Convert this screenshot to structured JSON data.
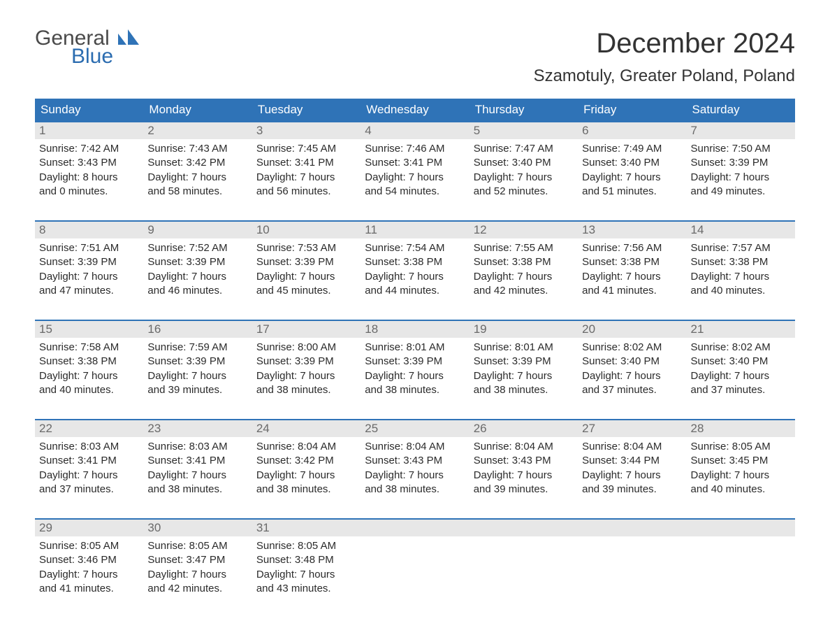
{
  "logo": {
    "text_top": "General",
    "text_bottom": "Blue",
    "mark_color": "#2f73b7"
  },
  "title": "December 2024",
  "location": "Szamotuly, Greater Poland, Poland",
  "colors": {
    "header_bg": "#2f73b7",
    "header_text": "#ffffff",
    "daynum_bg": "#e7e7e7",
    "daynum_text": "#6a6a6a",
    "week_border": "#2f73b7",
    "body_text": "#2b2b2b"
  },
  "weekdays": [
    "Sunday",
    "Monday",
    "Tuesday",
    "Wednesday",
    "Thursday",
    "Friday",
    "Saturday"
  ],
  "weeks": [
    [
      {
        "num": "1",
        "sunrise": "Sunrise: 7:42 AM",
        "sunset": "Sunset: 3:43 PM",
        "day1": "Daylight: 8 hours",
        "day2": "and 0 minutes."
      },
      {
        "num": "2",
        "sunrise": "Sunrise: 7:43 AM",
        "sunset": "Sunset: 3:42 PM",
        "day1": "Daylight: 7 hours",
        "day2": "and 58 minutes."
      },
      {
        "num": "3",
        "sunrise": "Sunrise: 7:45 AM",
        "sunset": "Sunset: 3:41 PM",
        "day1": "Daylight: 7 hours",
        "day2": "and 56 minutes."
      },
      {
        "num": "4",
        "sunrise": "Sunrise: 7:46 AM",
        "sunset": "Sunset: 3:41 PM",
        "day1": "Daylight: 7 hours",
        "day2": "and 54 minutes."
      },
      {
        "num": "5",
        "sunrise": "Sunrise: 7:47 AM",
        "sunset": "Sunset: 3:40 PM",
        "day1": "Daylight: 7 hours",
        "day2": "and 52 minutes."
      },
      {
        "num": "6",
        "sunrise": "Sunrise: 7:49 AM",
        "sunset": "Sunset: 3:40 PM",
        "day1": "Daylight: 7 hours",
        "day2": "and 51 minutes."
      },
      {
        "num": "7",
        "sunrise": "Sunrise: 7:50 AM",
        "sunset": "Sunset: 3:39 PM",
        "day1": "Daylight: 7 hours",
        "day2": "and 49 minutes."
      }
    ],
    [
      {
        "num": "8",
        "sunrise": "Sunrise: 7:51 AM",
        "sunset": "Sunset: 3:39 PM",
        "day1": "Daylight: 7 hours",
        "day2": "and 47 minutes."
      },
      {
        "num": "9",
        "sunrise": "Sunrise: 7:52 AM",
        "sunset": "Sunset: 3:39 PM",
        "day1": "Daylight: 7 hours",
        "day2": "and 46 minutes."
      },
      {
        "num": "10",
        "sunrise": "Sunrise: 7:53 AM",
        "sunset": "Sunset: 3:39 PM",
        "day1": "Daylight: 7 hours",
        "day2": "and 45 minutes."
      },
      {
        "num": "11",
        "sunrise": "Sunrise: 7:54 AM",
        "sunset": "Sunset: 3:38 PM",
        "day1": "Daylight: 7 hours",
        "day2": "and 44 minutes."
      },
      {
        "num": "12",
        "sunrise": "Sunrise: 7:55 AM",
        "sunset": "Sunset: 3:38 PM",
        "day1": "Daylight: 7 hours",
        "day2": "and 42 minutes."
      },
      {
        "num": "13",
        "sunrise": "Sunrise: 7:56 AM",
        "sunset": "Sunset: 3:38 PM",
        "day1": "Daylight: 7 hours",
        "day2": "and 41 minutes."
      },
      {
        "num": "14",
        "sunrise": "Sunrise: 7:57 AM",
        "sunset": "Sunset: 3:38 PM",
        "day1": "Daylight: 7 hours",
        "day2": "and 40 minutes."
      }
    ],
    [
      {
        "num": "15",
        "sunrise": "Sunrise: 7:58 AM",
        "sunset": "Sunset: 3:38 PM",
        "day1": "Daylight: 7 hours",
        "day2": "and 40 minutes."
      },
      {
        "num": "16",
        "sunrise": "Sunrise: 7:59 AM",
        "sunset": "Sunset: 3:39 PM",
        "day1": "Daylight: 7 hours",
        "day2": "and 39 minutes."
      },
      {
        "num": "17",
        "sunrise": "Sunrise: 8:00 AM",
        "sunset": "Sunset: 3:39 PM",
        "day1": "Daylight: 7 hours",
        "day2": "and 38 minutes."
      },
      {
        "num": "18",
        "sunrise": "Sunrise: 8:01 AM",
        "sunset": "Sunset: 3:39 PM",
        "day1": "Daylight: 7 hours",
        "day2": "and 38 minutes."
      },
      {
        "num": "19",
        "sunrise": "Sunrise: 8:01 AM",
        "sunset": "Sunset: 3:39 PM",
        "day1": "Daylight: 7 hours",
        "day2": "and 38 minutes."
      },
      {
        "num": "20",
        "sunrise": "Sunrise: 8:02 AM",
        "sunset": "Sunset: 3:40 PM",
        "day1": "Daylight: 7 hours",
        "day2": "and 37 minutes."
      },
      {
        "num": "21",
        "sunrise": "Sunrise: 8:02 AM",
        "sunset": "Sunset: 3:40 PM",
        "day1": "Daylight: 7 hours",
        "day2": "and 37 minutes."
      }
    ],
    [
      {
        "num": "22",
        "sunrise": "Sunrise: 8:03 AM",
        "sunset": "Sunset: 3:41 PM",
        "day1": "Daylight: 7 hours",
        "day2": "and 37 minutes."
      },
      {
        "num": "23",
        "sunrise": "Sunrise: 8:03 AM",
        "sunset": "Sunset: 3:41 PM",
        "day1": "Daylight: 7 hours",
        "day2": "and 38 minutes."
      },
      {
        "num": "24",
        "sunrise": "Sunrise: 8:04 AM",
        "sunset": "Sunset: 3:42 PM",
        "day1": "Daylight: 7 hours",
        "day2": "and 38 minutes."
      },
      {
        "num": "25",
        "sunrise": "Sunrise: 8:04 AM",
        "sunset": "Sunset: 3:43 PM",
        "day1": "Daylight: 7 hours",
        "day2": "and 38 minutes."
      },
      {
        "num": "26",
        "sunrise": "Sunrise: 8:04 AM",
        "sunset": "Sunset: 3:43 PM",
        "day1": "Daylight: 7 hours",
        "day2": "and 39 minutes."
      },
      {
        "num": "27",
        "sunrise": "Sunrise: 8:04 AM",
        "sunset": "Sunset: 3:44 PM",
        "day1": "Daylight: 7 hours",
        "day2": "and 39 minutes."
      },
      {
        "num": "28",
        "sunrise": "Sunrise: 8:05 AM",
        "sunset": "Sunset: 3:45 PM",
        "day1": "Daylight: 7 hours",
        "day2": "and 40 minutes."
      }
    ],
    [
      {
        "num": "29",
        "sunrise": "Sunrise: 8:05 AM",
        "sunset": "Sunset: 3:46 PM",
        "day1": "Daylight: 7 hours",
        "day2": "and 41 minutes."
      },
      {
        "num": "30",
        "sunrise": "Sunrise: 8:05 AM",
        "sunset": "Sunset: 3:47 PM",
        "day1": "Daylight: 7 hours",
        "day2": "and 42 minutes."
      },
      {
        "num": "31",
        "sunrise": "Sunrise: 8:05 AM",
        "sunset": "Sunset: 3:48 PM",
        "day1": "Daylight: 7 hours",
        "day2": "and 43 minutes."
      },
      {
        "empty": true
      },
      {
        "empty": true
      },
      {
        "empty": true
      },
      {
        "empty": true
      }
    ]
  ]
}
